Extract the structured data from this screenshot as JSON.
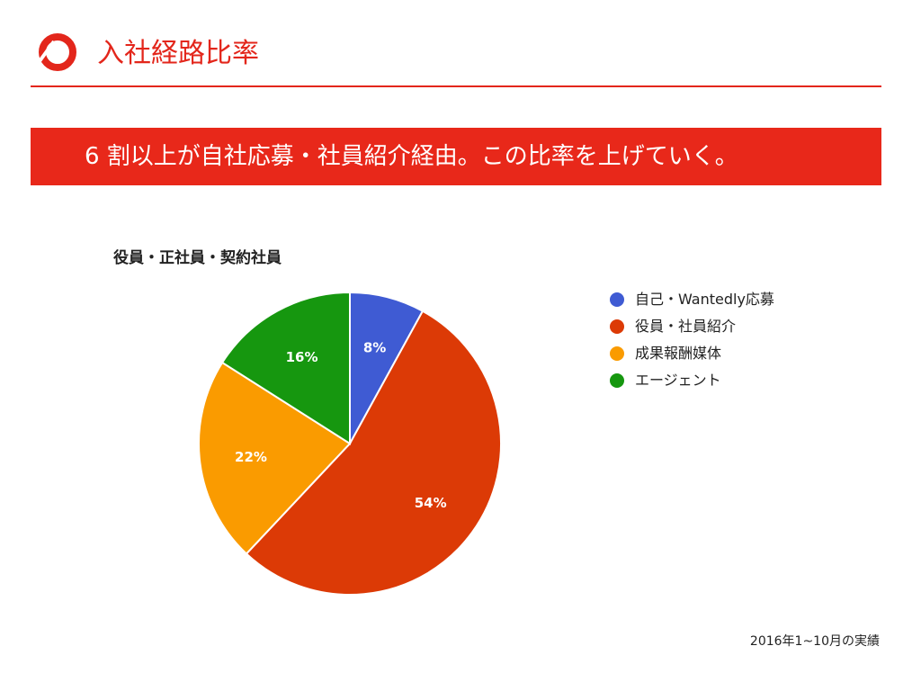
{
  "header": {
    "title": "入社経路比率"
  },
  "banner": {
    "text": "6 割以上が自社応募・社員紹介経由。この比率を上げていく。"
  },
  "colors": {
    "accent": "#e3261b",
    "banner": "#e8281a"
  },
  "chart_data": {
    "type": "pie",
    "title": "役員・正社員・契約社員",
    "series": [
      {
        "name": "自己・Wantedly応募",
        "value": 8,
        "label": "8%",
        "color": "#3f5bd3"
      },
      {
        "name": "役員・社員紹介",
        "value": 54,
        "label": "54%",
        "color": "#dc3a06"
      },
      {
        "name": "成果報酬媒体",
        "value": 22,
        "label": "22%",
        "color": "#fa9b00"
      },
      {
        "name": "エージェント",
        "value": 16,
        "label": "16%",
        "color": "#16970f"
      }
    ],
    "legend_position": "right"
  },
  "footnote": "2016年1~10月の実績"
}
